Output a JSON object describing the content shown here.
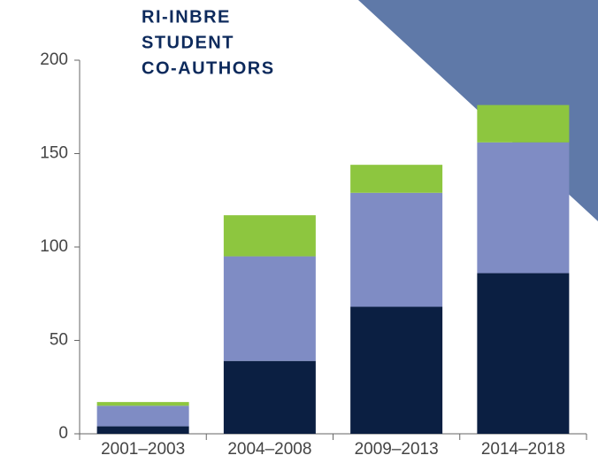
{
  "chart_data": {
    "type": "stacked_bar",
    "title": [
      "RI-INBRE",
      "STUDENT",
      "CO-AUTHORS"
    ],
    "categories": [
      "2001–2003",
      "2004–2008",
      "2009–2013",
      "2014–2018"
    ],
    "series": [
      {
        "color": "#0b1f42",
        "values": [
          4,
          39,
          68,
          86
        ]
      },
      {
        "color": "#7f8cc4",
        "values": [
          11,
          56,
          61,
          70
        ]
      },
      {
        "color": "#8dc63f",
        "values": [
          2,
          22,
          15,
          20
        ]
      }
    ],
    "ylim": [
      0,
      200
    ],
    "yticks": [
      0,
      50,
      100,
      150,
      200
    ]
  }
}
